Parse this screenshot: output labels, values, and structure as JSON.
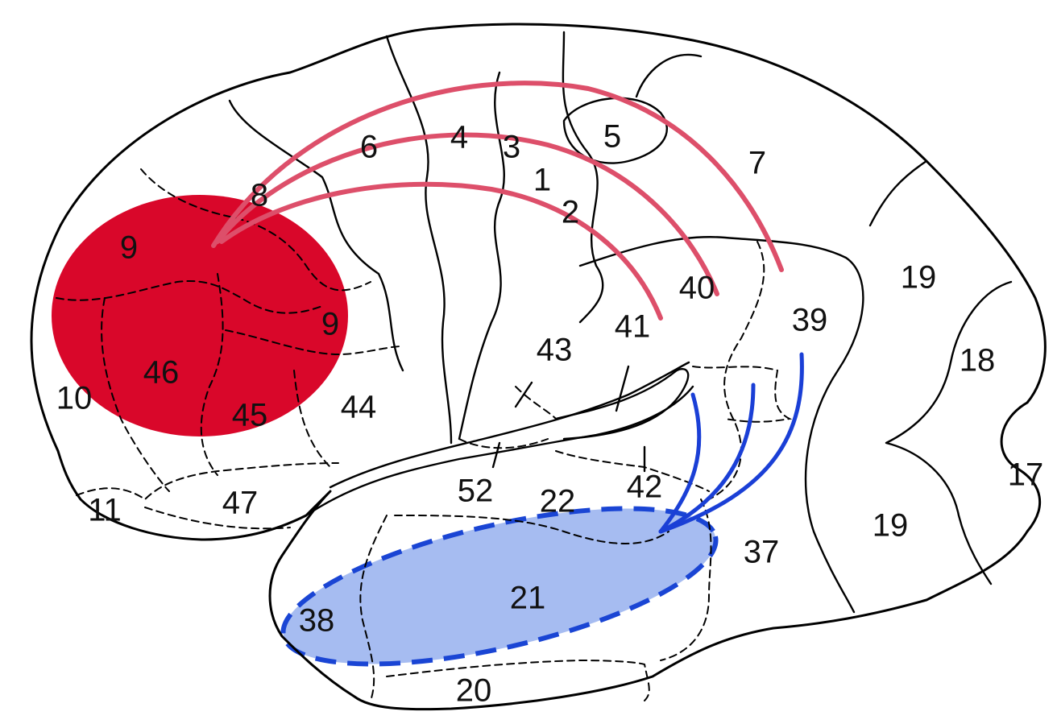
{
  "colors": {
    "frontal_region_fill": "#d9072a",
    "temporal_region_fill": "#a6bcf1",
    "temporal_region_border": "#1a45d4",
    "frontal_connections": "#dd4f6a",
    "temporal_connections": "#1a3fd6"
  },
  "areas": [
    {
      "id": "a9-top",
      "label": "9"
    },
    {
      "id": "a9-right",
      "label": "9"
    },
    {
      "id": "a8",
      "label": "8"
    },
    {
      "id": "a6",
      "label": "6"
    },
    {
      "id": "a4",
      "label": "4"
    },
    {
      "id": "a3",
      "label": "3"
    },
    {
      "id": "a1",
      "label": "1"
    },
    {
      "id": "a2",
      "label": "2"
    },
    {
      "id": "a5",
      "label": "5"
    },
    {
      "id": "a7",
      "label": "7"
    },
    {
      "id": "a46",
      "label": "46"
    },
    {
      "id": "a45",
      "label": "45"
    },
    {
      "id": "a44",
      "label": "44"
    },
    {
      "id": "a10",
      "label": "10"
    },
    {
      "id": "a11",
      "label": "11"
    },
    {
      "id": "a47",
      "label": "47"
    },
    {
      "id": "a43",
      "label": "43"
    },
    {
      "id": "a41",
      "label": "41"
    },
    {
      "id": "a40",
      "label": "40"
    },
    {
      "id": "a39",
      "label": "39"
    },
    {
      "id": "a42",
      "label": "42"
    },
    {
      "id": "a52",
      "label": "52"
    },
    {
      "id": "a22",
      "label": "22"
    },
    {
      "id": "a21",
      "label": "21"
    },
    {
      "id": "a38",
      "label": "38"
    },
    {
      "id": "a20",
      "label": "20"
    },
    {
      "id": "a37",
      "label": "37"
    },
    {
      "id": "a19-top",
      "label": "19"
    },
    {
      "id": "a19-bottom",
      "label": "19"
    },
    {
      "id": "a18",
      "label": "18"
    },
    {
      "id": "a17",
      "label": "17"
    }
  ]
}
